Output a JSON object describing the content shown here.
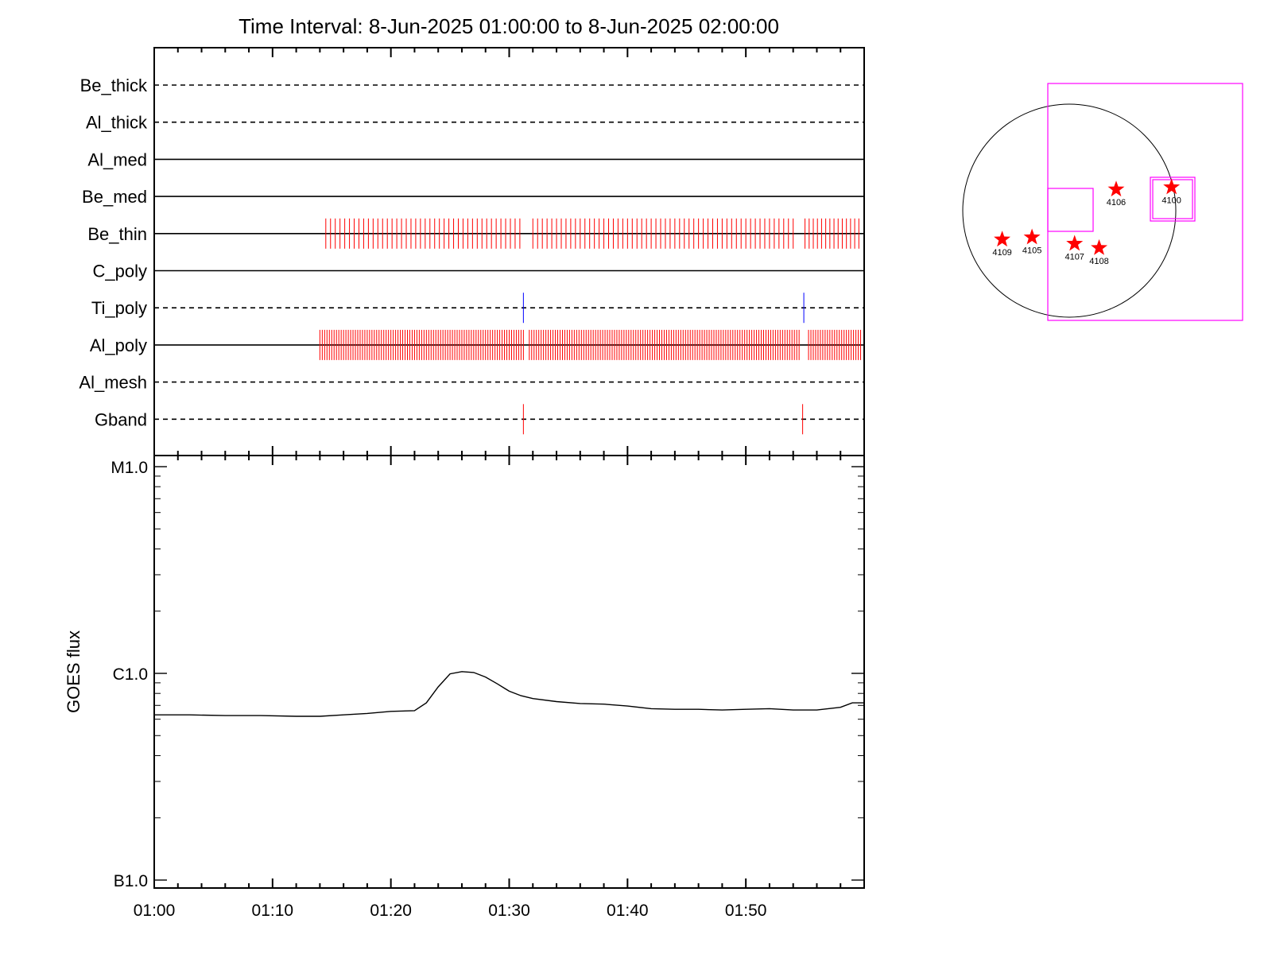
{
  "title": "Time Interval:  8-Jun-2025 01:00:00 to  8-Jun-2025 02:00:00",
  "colors": {
    "event": "#ff0000",
    "blue_event": "#0000ff",
    "box": "#ff00ff",
    "axis": "#000000"
  },
  "chart_data": [
    {
      "type": "event-timeline",
      "time_range": [
        "01:00",
        "02:00"
      ],
      "channels": [
        {
          "name": "Be_thick",
          "style": "dashed",
          "event_color": "#ff0000",
          "events": []
        },
        {
          "name": "Al_thick",
          "style": "dashed",
          "event_color": "#ff0000",
          "events": []
        },
        {
          "name": "Al_med",
          "style": "solid",
          "event_color": "#ff0000",
          "events": []
        },
        {
          "name": "Be_med",
          "style": "solid",
          "event_color": "#ff0000",
          "events": []
        },
        {
          "name": "Be_thin",
          "style": "solid",
          "event_color": "#ff0000",
          "density_note": "dense cadence",
          "ranges": [
            {
              "start": 14.5,
              "end": 31.0,
              "step": 0.4
            },
            {
              "start": 32.0,
              "end": 54.0,
              "step": 0.4
            },
            {
              "start": 55.0,
              "end": 59.6,
              "step": 0.35
            }
          ],
          "events": []
        },
        {
          "name": "C_poly",
          "style": "solid",
          "event_color": "#ff0000",
          "events": []
        },
        {
          "name": "Ti_poly",
          "style": "dashed",
          "event_color": "#0000ff",
          "events": [
            31.2,
            54.9
          ]
        },
        {
          "name": "Al_poly",
          "style": "solid",
          "event_color": "#ff0000",
          "ranges": [
            {
              "start": 14.0,
              "end": 31.2,
              "step": 0.2
            },
            {
              "start": 31.7,
              "end": 54.6,
              "step": 0.2
            },
            {
              "start": 55.3,
              "end": 59.8,
              "step": 0.2
            }
          ],
          "events": []
        },
        {
          "name": "Al_mesh",
          "style": "dashed",
          "event_color": "#ff0000",
          "events": []
        },
        {
          "name": "Gband",
          "style": "dashed",
          "event_color": "#ff0000",
          "events": [
            31.2,
            54.8
          ]
        }
      ],
      "x_ticks": [
        "01:00",
        "01:10",
        "01:20",
        "01:30",
        "01:40",
        "01:50"
      ]
    },
    {
      "type": "line",
      "ylabel": "GOES flux",
      "yscale": "log",
      "ylim": [
        1e-07,
        1e-05
      ],
      "y_ticks": [
        {
          "value": 1e-07,
          "label": "B1.0"
        },
        {
          "value": 1e-06,
          "label": "C1.0"
        },
        {
          "value": 1e-05,
          "label": "M1.0"
        }
      ],
      "x_ticks": [
        "01:00",
        "01:10",
        "01:20",
        "01:30",
        "01:40",
        "01:50"
      ],
      "xlim_minutes": [
        0,
        60
      ],
      "series": [
        {
          "x_minutes": [
            0,
            3,
            6,
            9,
            12,
            14,
            16,
            18,
            20,
            22,
            23,
            24,
            25,
            26,
            27,
            28,
            29,
            30,
            31,
            32,
            34,
            36,
            38,
            40,
            42,
            44,
            46,
            48,
            50,
            52,
            54,
            56,
            58,
            59,
            60
          ],
          "values": [
            6.3e-07,
            6.3e-07,
            6.25e-07,
            6.25e-07,
            6.2e-07,
            6.2e-07,
            6.3e-07,
            6.4e-07,
            6.55e-07,
            6.6e-07,
            7.2e-07,
            8.6e-07,
            9.95e-07,
            1.02e-06,
            1.01e-06,
            9.6e-07,
            8.9e-07,
            8.2e-07,
            7.8e-07,
            7.55e-07,
            7.3e-07,
            7.15e-07,
            7.1e-07,
            6.95e-07,
            6.75e-07,
            6.7e-07,
            6.7e-07,
            6.65e-07,
            6.7e-07,
            6.75e-07,
            6.65e-07,
            6.65e-07,
            6.85e-07,
            7.2e-07,
            7.2e-07
          ]
        }
      ]
    },
    {
      "type": "scatter",
      "description_kind": "solar-disk",
      "points": [
        {
          "label": "4100",
          "x": 0.96,
          "y": 0.22
        },
        {
          "label": "4106",
          "x": 0.44,
          "y": 0.2
        },
        {
          "label": "4109",
          "x": -0.63,
          "y": -0.27
        },
        {
          "label": "4105",
          "x": -0.35,
          "y": -0.25
        },
        {
          "label": "4107",
          "x": 0.05,
          "y": -0.31
        },
        {
          "label": "4108",
          "x": 0.28,
          "y": -0.35
        }
      ],
      "marker": "star",
      "marker_color": "#ff0000"
    }
  ]
}
